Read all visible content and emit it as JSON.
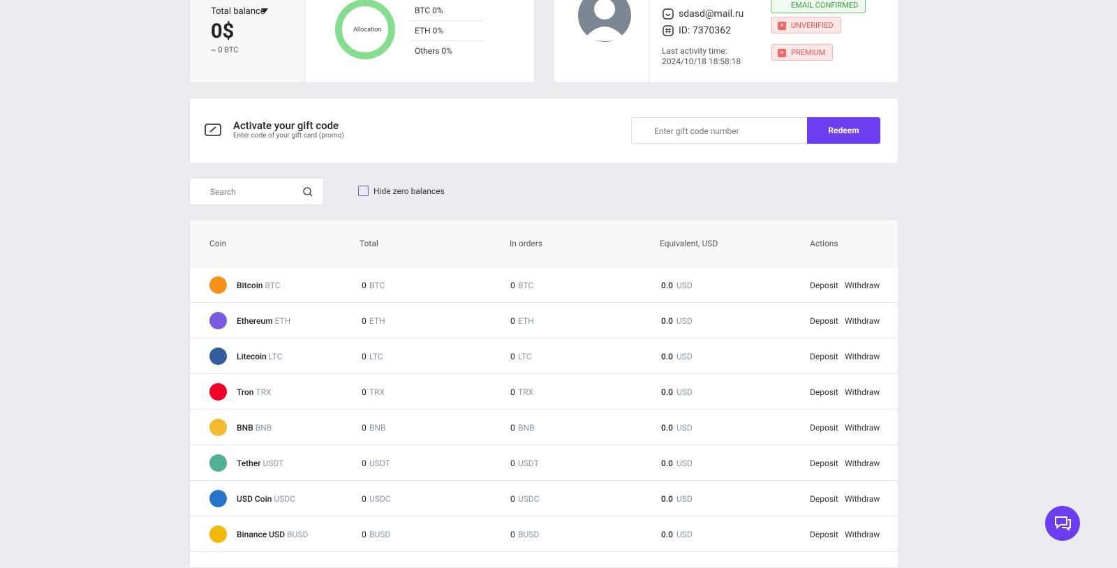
{
  "balance": {
    "label": "Total balance",
    "amount": "0$",
    "btc": "~ 0 BTC"
  },
  "allocation": {
    "center": "Allocation",
    "items": [
      "BTC 0%",
      "ETH 0%",
      "Others 0%"
    ]
  },
  "profile": {
    "email": "sdasd@mail.ru",
    "id": "ID: 7370362",
    "last_activity_label": "Last activity time:",
    "last_activity": "2024/10/18 18:58:18",
    "badges": [
      "EMAIL CONFIRMED",
      "UNVERIFIED",
      "PREMIUM"
    ]
  },
  "gift": {
    "title": "Activate your gift code",
    "subtitle": "Enter code of your gift card (promo)",
    "placeholder": "Enter gift code number",
    "button": "Redeem"
  },
  "filters": {
    "search_placeholder": "Search",
    "hide_zero": "Hide zero balances"
  },
  "table": {
    "headers": [
      "Coin",
      "Total",
      "In orders",
      "Equivalent, USD",
      "Actions"
    ],
    "actions": [
      "Deposit",
      "Withdraw"
    ],
    "rows": [
      {
        "name": "Bitcoin",
        "symbol": "BTC",
        "total": "0",
        "in_orders": "0",
        "equivalent": "0.0",
        "currency": "USD",
        "color": "#f7931a"
      },
      {
        "name": "Ethereum",
        "symbol": "ETH",
        "total": "0",
        "in_orders": "0",
        "equivalent": "0.0",
        "currency": "USD",
        "color": "#7b5ce0"
      },
      {
        "name": "Litecoin",
        "symbol": "LTC",
        "total": "0",
        "in_orders": "0",
        "equivalent": "0.0",
        "currency": "USD",
        "color": "#345d9d"
      },
      {
        "name": "Tron",
        "symbol": "TRX",
        "total": "0",
        "in_orders": "0",
        "equivalent": "0.0",
        "currency": "USD",
        "color": "#ef0027"
      },
      {
        "name": "BNB",
        "symbol": "BNB",
        "total": "0",
        "in_orders": "0",
        "equivalent": "0.0",
        "currency": "USD",
        "color": "#f3ba2f"
      },
      {
        "name": "Tether",
        "symbol": "USDT",
        "total": "0",
        "in_orders": "0",
        "equivalent": "0.0",
        "currency": "USD",
        "color": "#50af95"
      },
      {
        "name": "USD Coin",
        "symbol": "USDC",
        "total": "0",
        "in_orders": "0",
        "equivalent": "0.0",
        "currency": "USD",
        "color": "#2775ca"
      },
      {
        "name": "Binance USD",
        "symbol": "BUSD",
        "total": "0",
        "in_orders": "0",
        "equivalent": "0.0",
        "currency": "USD",
        "color": "#f0b90b"
      }
    ]
  }
}
